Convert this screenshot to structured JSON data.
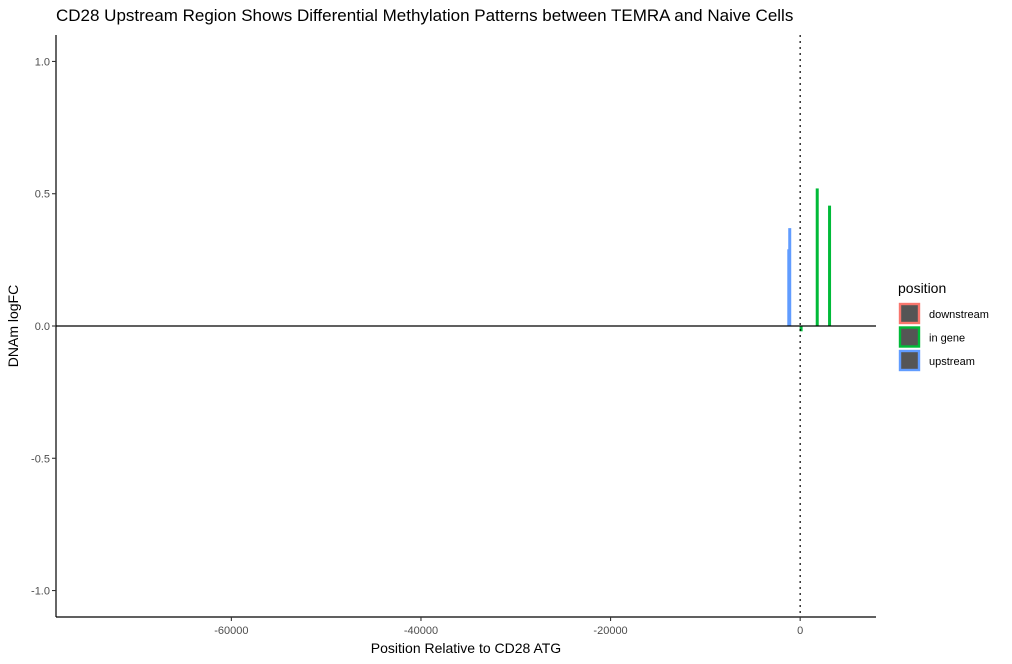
{
  "chart_data": {
    "type": "bar",
    "title": "CD28 Upstream Region Shows Differential Methylation Patterns between TEMRA and Naive Cells",
    "xlabel": "Position Relative to CD28 ATG",
    "ylabel": "DNAm logFC",
    "xlim": [
      -78500,
      8000
    ],
    "ylim": [
      -1.1,
      1.1
    ],
    "x_ticks": [
      {
        "value": -60000,
        "label": "-60000"
      },
      {
        "value": -40000,
        "label": "-40000"
      },
      {
        "value": -20000,
        "label": "-20000"
      },
      {
        "value": 0,
        "label": "0"
      }
    ],
    "y_ticks": [
      {
        "value": -1.0,
        "label": "-1.0"
      },
      {
        "value": -0.5,
        "label": "-0.5"
      },
      {
        "value": 0.0,
        "label": "0.0"
      },
      {
        "value": 0.5,
        "label": "0.5"
      },
      {
        "value": 1.0,
        "label": "1.0"
      }
    ],
    "reference_lines": {
      "horizontal_y": 0,
      "vertical_x": 0
    },
    "grid": false,
    "legend": {
      "title": "position",
      "placement": "right",
      "entries": [
        {
          "label": "downstream",
          "color": "#F8766D"
        },
        {
          "label": "in gene",
          "color": "#00BA38"
        },
        {
          "label": "upstream",
          "color": "#619CFF"
        }
      ]
    },
    "series": [
      {
        "name": "upstream",
        "color": "#619CFF",
        "x": [
          -1200,
          -1100
        ],
        "values": [
          0.29,
          0.37
        ]
      },
      {
        "name": "in gene",
        "color": "#00BA38",
        "x": [
          100,
          1800,
          3100
        ],
        "values": [
          -0.02,
          0.52,
          0.455
        ]
      },
      {
        "name": "downstream",
        "color": "#F8766D",
        "x": [],
        "values": []
      }
    ]
  }
}
